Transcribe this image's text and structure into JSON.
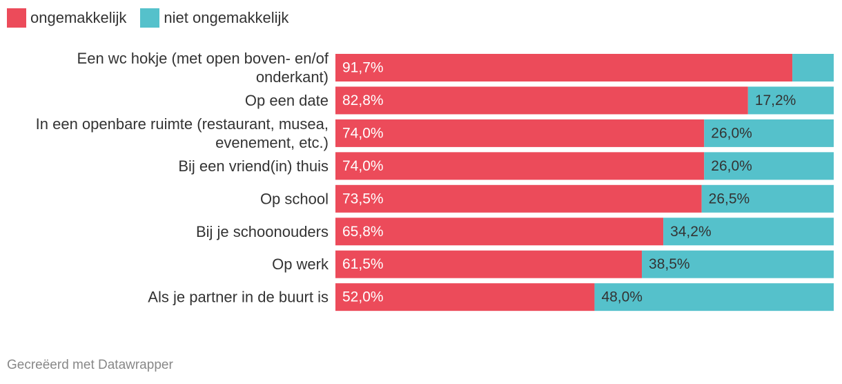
{
  "chart_data": {
    "type": "bar",
    "orientation": "horizontal",
    "stacked": true,
    "title": "",
    "xlabel": "",
    "ylabel": "",
    "xlim": [
      0,
      100
    ],
    "categories": [
      [
        "Een wc hokje (met open boven- en/of",
        "onderkant)"
      ],
      [
        "Op een date"
      ],
      [
        "In een openbare ruimte (restaurant, musea,",
        "evenement, etc.)"
      ],
      [
        "Bij een vriend(in) thuis"
      ],
      [
        "Op school"
      ],
      [
        "Bij je schoonouders"
      ],
      [
        "Op werk"
      ],
      [
        "Als je partner in de buurt is"
      ]
    ],
    "series": [
      {
        "name": "ongemakkelijk",
        "color": "#ec4b5a",
        "values": [
          91.7,
          82.8,
          74.0,
          74.0,
          73.5,
          65.8,
          61.5,
          52.0
        ],
        "labels": [
          "91,7%",
          "82,8%",
          "74,0%",
          "74,0%",
          "73,5%",
          "65,8%",
          "61,5%",
          "52,0%"
        ]
      },
      {
        "name": "niet ongemakkelijk",
        "color": "#55c1cb",
        "values": [
          8.3,
          17.2,
          26.0,
          26.0,
          26.5,
          34.2,
          38.5,
          48.0
        ],
        "labels": [
          "",
          "17,2%",
          "26,0%",
          "26,0%",
          "26,5%",
          "34,2%",
          "38,5%",
          "48,0%"
        ]
      }
    ],
    "legend_position": "top-left",
    "grid": false
  },
  "legend": {
    "items": [
      {
        "label": "ongemakkelijk",
        "color": "#ec4b5a"
      },
      {
        "label": "niet ongemakkelijk",
        "color": "#55c1cb"
      }
    ]
  },
  "footer": {
    "credit": "Gecreëerd met Datawrapper"
  }
}
